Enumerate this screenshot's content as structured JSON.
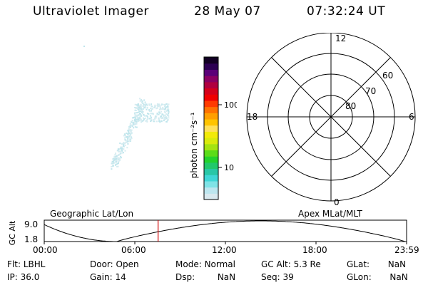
{
  "header": {
    "instrument": "Ultraviolet Imager",
    "date": "28 May 07",
    "time": "07:32:24 UT"
  },
  "colorbar": {
    "unit_label": "photon cm⁻²s⁻¹",
    "ticks": [
      "100",
      "10"
    ],
    "colors": [
      "#d9e9ef",
      "#bde6ef",
      "#7fe3e6",
      "#3fd6d6",
      "#29c7a7",
      "#22c86b",
      "#23d22c",
      "#5bdc19",
      "#a4e312",
      "#d9ea0c",
      "#f2ea08",
      "#ffe05a",
      "#ffc400",
      "#ff9f00",
      "#ff7200",
      "#ff3b00",
      "#f00000",
      "#d4001b",
      "#b0003f",
      "#8a0063",
      "#5b0078",
      "#2c0053",
      "#120024"
    ]
  },
  "polar": {
    "lat_labels": [
      "60",
      "70",
      "80"
    ],
    "mlt_labels": {
      "top": "12",
      "left": "18",
      "right": "6",
      "bottom": "0"
    }
  },
  "orbit": {
    "left_label": "Geographic Lat/Lon",
    "right_label": "Apex MLat/MLT",
    "y_axis_label": "GC Alt",
    "y_ticks": [
      "9.0",
      "1.8"
    ],
    "x_ticks": [
      "00:00",
      "06:00",
      "12:00",
      "18:00",
      "23:59"
    ],
    "current_marker_hour": 7.54,
    "marker_color": "#d00000"
  },
  "status": {
    "row1": [
      {
        "label": "Flt:",
        "value": "LBHL"
      },
      {
        "label": "Door:",
        "value": "Open"
      },
      {
        "label": "Mode:",
        "value": "Normal"
      },
      {
        "label": "GC Alt:",
        "value": "5.3 Re"
      },
      {
        "label": "GLat:",
        "value": "NaN"
      }
    ],
    "row2": [
      {
        "label": "IP:",
        "value": "36.0"
      },
      {
        "label": "Gain:",
        "value": "14"
      },
      {
        "label": "Dsp:",
        "value": "NaN"
      },
      {
        "label": "Seq:",
        "value": "39"
      },
      {
        "label": "GLon:",
        "value": "NaN"
      }
    ]
  }
}
